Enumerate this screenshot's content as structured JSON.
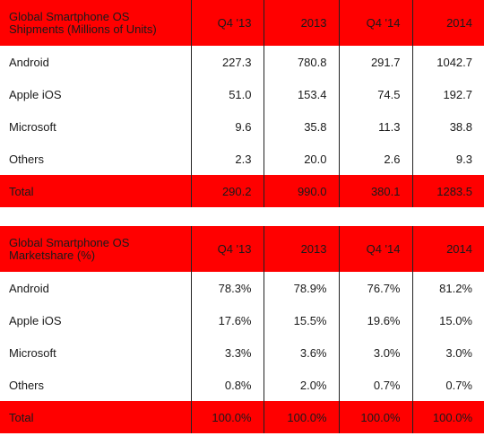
{
  "tables": [
    {
      "title_line1": "Global Smartphone OS",
      "title_line2": "Shipments (Millions of Units)",
      "columns": [
        "Q4 '13",
        "2013",
        "Q4 '14",
        "2014"
      ],
      "rows": [
        {
          "label": "Android",
          "values": [
            "227.3",
            "780.8",
            "291.7",
            "1042.7"
          ]
        },
        {
          "label": "Apple iOS",
          "values": [
            "51.0",
            "153.4",
            "74.5",
            "192.7"
          ]
        },
        {
          "label": "Microsoft",
          "values": [
            "9.6",
            "35.8",
            "11.3",
            "38.8"
          ]
        },
        {
          "label": "Others",
          "values": [
            "2.3",
            "20.0",
            "2.6",
            "9.3"
          ]
        }
      ],
      "total": {
        "label": "Total",
        "values": [
          "290.2",
          "990.0",
          "380.1",
          "1283.5"
        ]
      }
    },
    {
      "title_line1": "Global Smartphone OS",
      "title_line2": "Marketshare (%)",
      "columns": [
        "Q4 '13",
        "2013",
        "Q4 '14",
        "2014"
      ],
      "rows": [
        {
          "label": "Android",
          "values": [
            "78.3%",
            "78.9%",
            "76.7%",
            "81.2%"
          ]
        },
        {
          "label": "Apple iOS",
          "values": [
            "17.6%",
            "15.5%",
            "19.6%",
            "15.0%"
          ]
        },
        {
          "label": "Microsoft",
          "values": [
            "3.3%",
            "3.6%",
            "3.0%",
            "3.0%"
          ]
        },
        {
          "label": "Others",
          "values": [
            "0.8%",
            "2.0%",
            "0.7%",
            "0.7%"
          ]
        }
      ],
      "total": {
        "label": "Total",
        "values": [
          "100.0%",
          "100.0%",
          "100.0%",
          "100.0%"
        ]
      }
    }
  ],
  "colors": {
    "header_bg": "#ff0000",
    "row_bg": "#ffffff",
    "text": "#1a1a1a"
  }
}
